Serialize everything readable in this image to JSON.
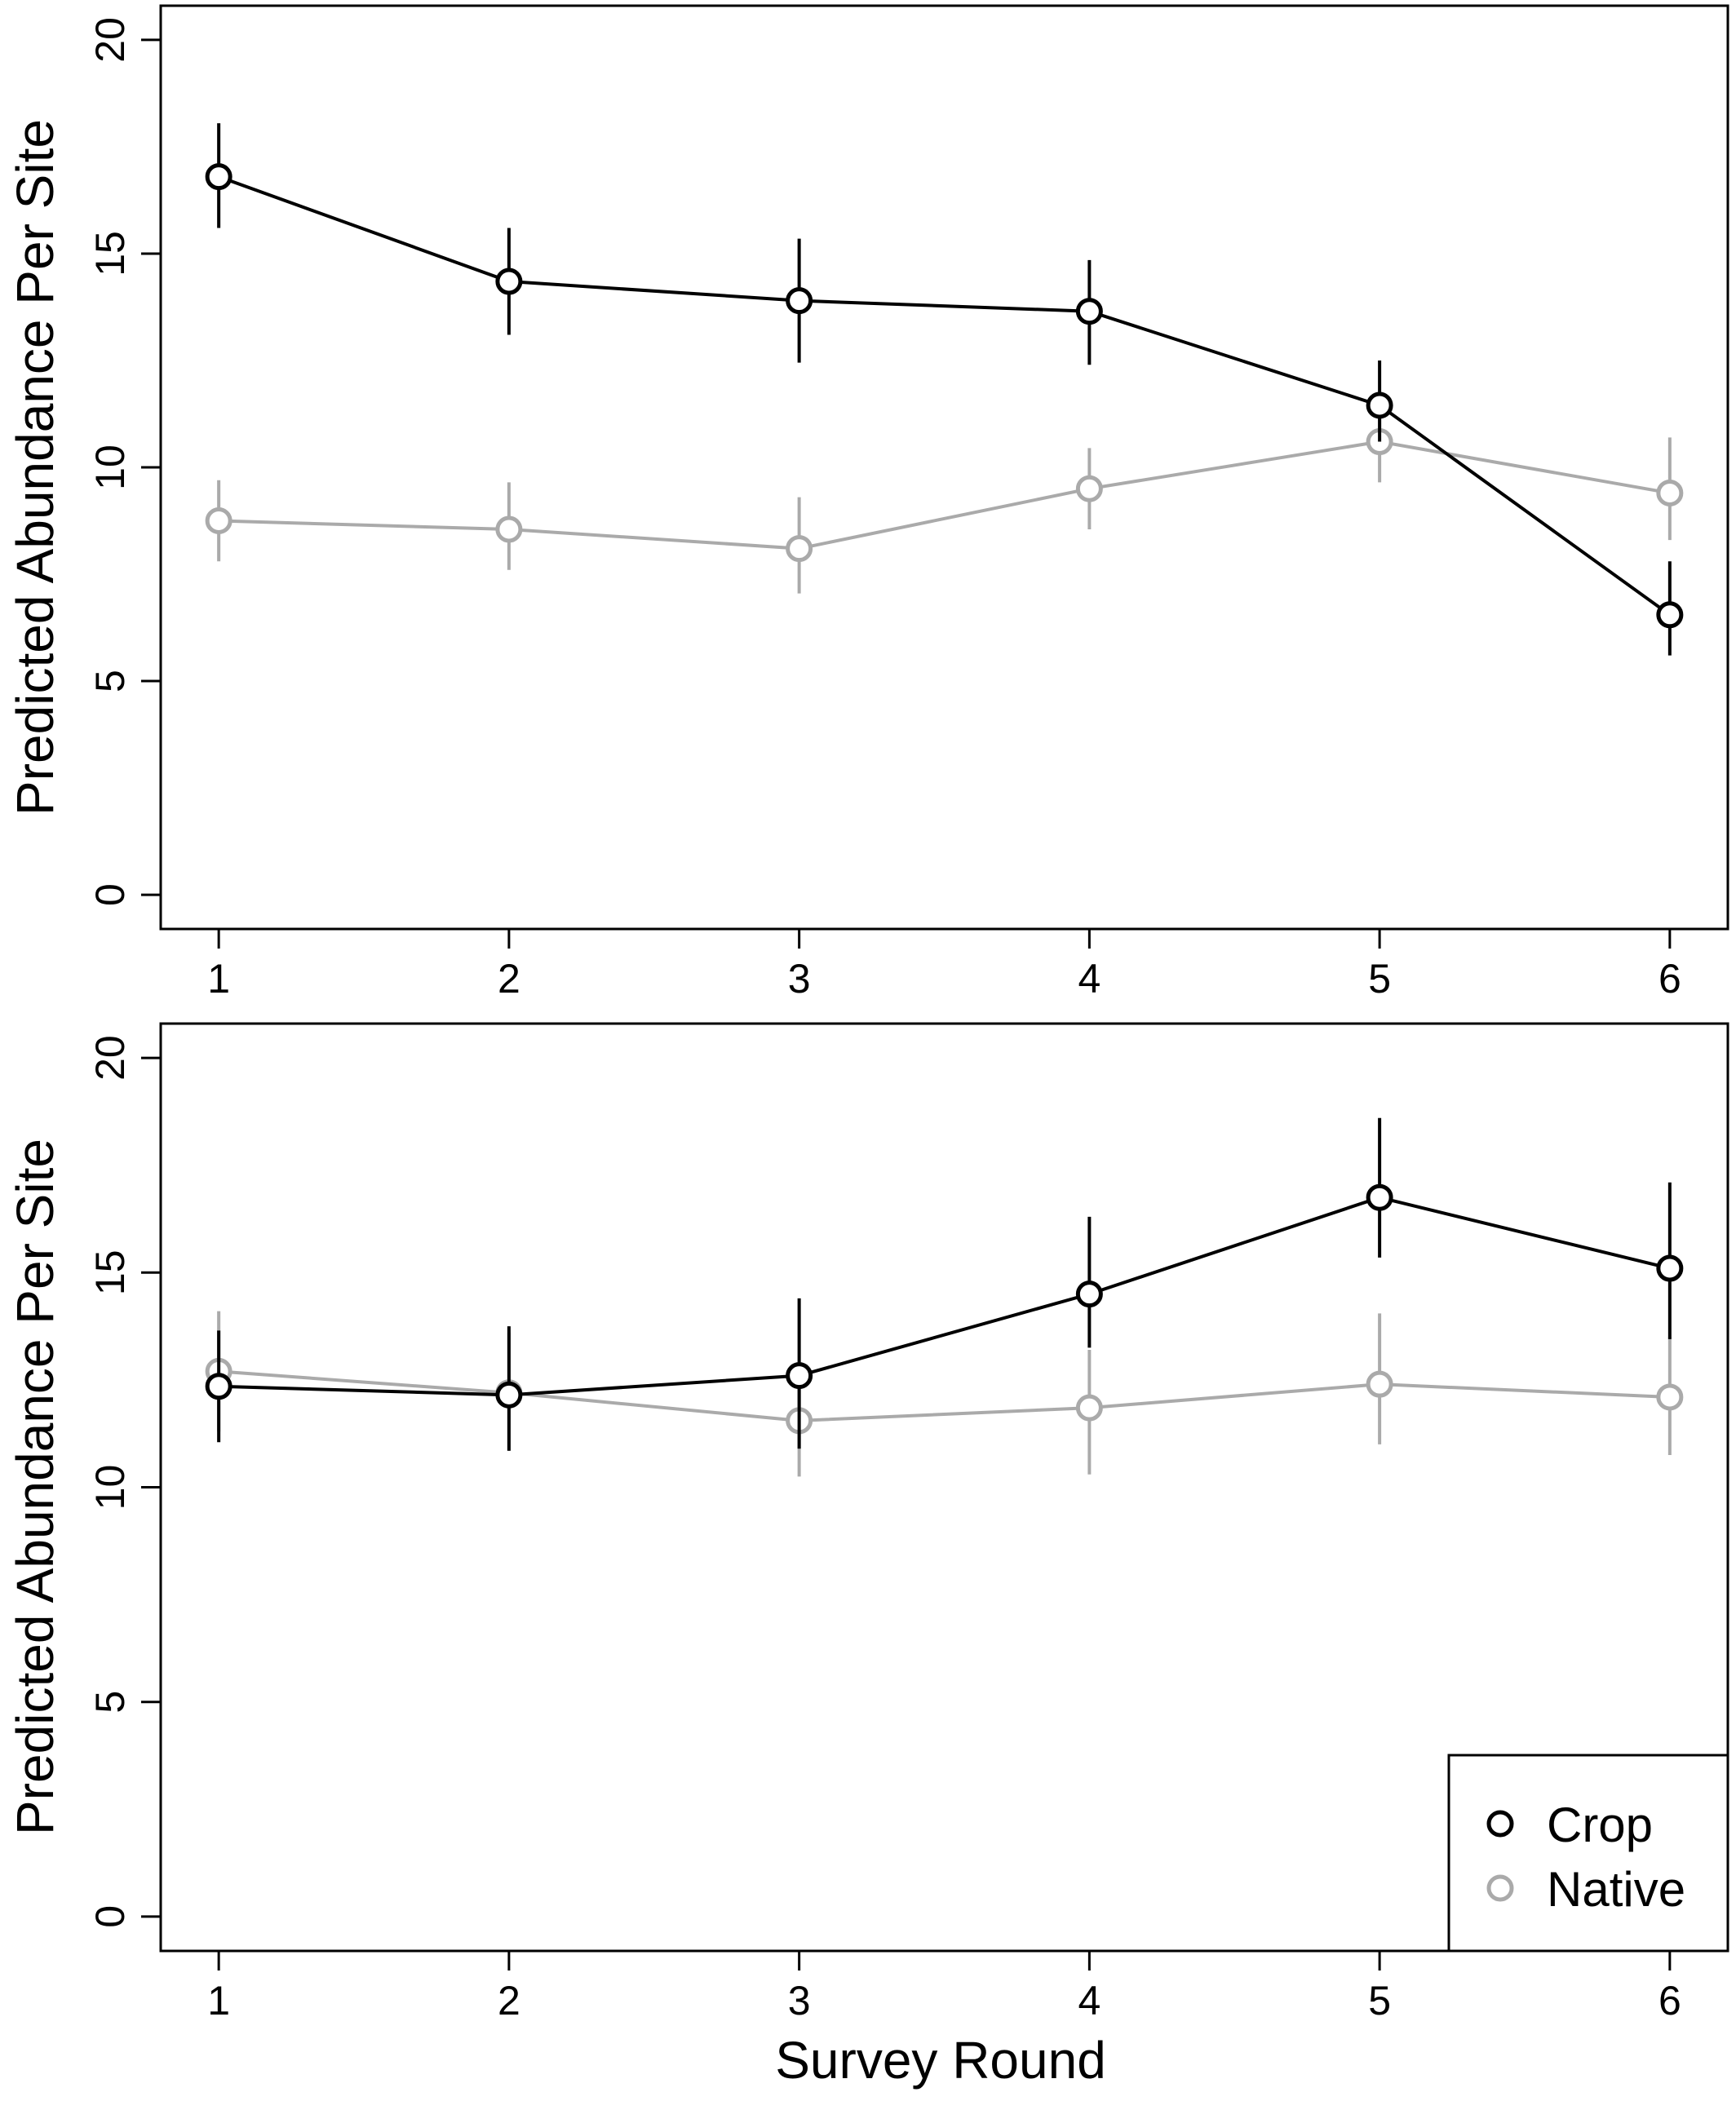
{
  "colors": {
    "crop": "#000000",
    "native": "#aaaaaa",
    "frame": "#000000"
  },
  "x_axis_label": "Survey Round",
  "legend": [
    {
      "key": "crop",
      "label": "Crop"
    },
    {
      "key": "native",
      "label": "Native"
    }
  ],
  "chart_data": [
    {
      "type": "line",
      "ylabel": "Predicted Abundance Per Site",
      "xlabel": "",
      "x": [
        1,
        2,
        3,
        4,
        5,
        6
      ],
      "xticks": [
        "1",
        "2",
        "3",
        "4",
        "5",
        "6"
      ],
      "xlim": [
        0.8,
        6.2
      ],
      "ylim": [
        -0.8,
        20.8
      ],
      "yticks": [
        "0",
        "5",
        "10",
        "15",
        "20"
      ],
      "grid": false,
      "series": [
        {
          "key": "crop",
          "name": "Crop",
          "values": [
            16.8,
            14.35,
            13.9,
            13.65,
            11.45,
            6.55
          ],
          "lower": [
            15.6,
            13.1,
            12.45,
            12.4,
            10.6,
            5.6
          ],
          "upper": [
            18.05,
            15.6,
            15.35,
            14.85,
            12.5,
            7.8
          ]
        },
        {
          "key": "native",
          "name": "Native",
          "values": [
            8.75,
            8.55,
            8.1,
            9.5,
            10.6,
            9.4
          ],
          "lower": [
            7.8,
            7.6,
            7.05,
            8.55,
            9.65,
            8.3
          ],
          "upper": [
            9.7,
            9.65,
            9.3,
            10.45,
            11.6,
            10.7
          ]
        }
      ]
    },
    {
      "type": "line",
      "ylabel": "Predicted Abundance Per Site",
      "xlabel": "Survey Round",
      "x": [
        1,
        2,
        3,
        4,
        5,
        6
      ],
      "xticks": [
        "1",
        "2",
        "3",
        "4",
        "5",
        "6"
      ],
      "xlim": [
        0.8,
        6.2
      ],
      "ylim": [
        -0.8,
        20.8
      ],
      "yticks": [
        "0",
        "5",
        "10",
        "15",
        "20"
      ],
      "grid": false,
      "legend_position": "bottom-right",
      "series": [
        {
          "key": "crop",
          "name": "Crop",
          "values": [
            12.35,
            12.15,
            12.6,
            14.5,
            16.75,
            15.1
          ],
          "lower": [
            11.05,
            10.85,
            10.9,
            13.25,
            15.35,
            13.45
          ],
          "upper": [
            13.65,
            13.75,
            14.4,
            16.3,
            18.6,
            17.1
          ]
        },
        {
          "key": "native",
          "name": "Native",
          "values": [
            12.7,
            12.2,
            11.55,
            11.85,
            12.4,
            12.1
          ],
          "lower": [
            11.3,
            10.85,
            10.25,
            10.3,
            11.0,
            10.75
          ],
          "upper": [
            14.1,
            13.6,
            12.85,
            13.2,
            14.05,
            13.5
          ]
        }
      ]
    }
  ]
}
